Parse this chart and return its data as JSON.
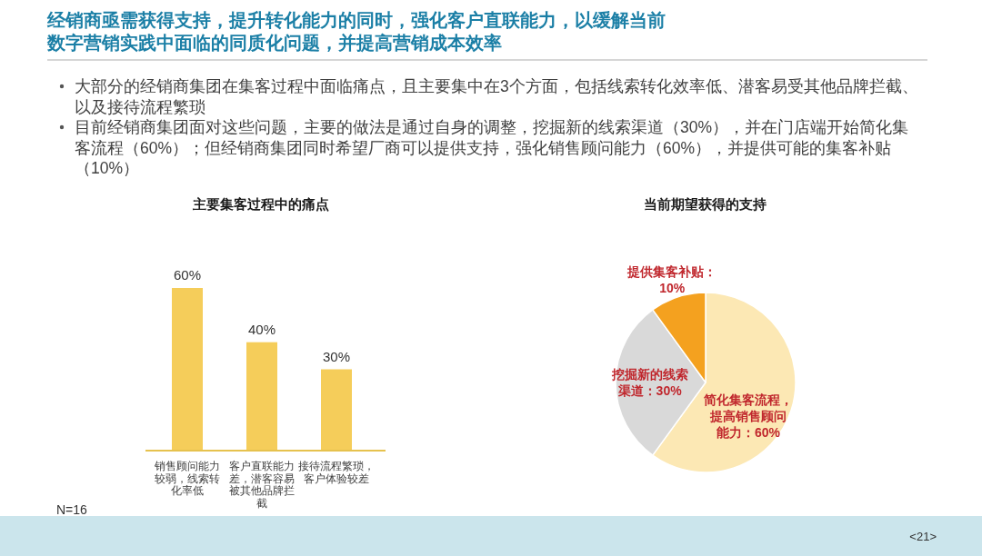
{
  "chart_data": [
    {
      "type": "other",
      "title": "经销商亟需获得支持，提升转化能力的同时，强化客户直联能力，以缓解当前数字营销实践中面临的同质化问题，并提高营销成本效率",
      "annotations": [
        "大部分的经销商集团在集客过程中面临痛点，且主要集中在3个方面，包括线索转化效率低、潜客易受其他品牌拦截、以及接待流程繁琐",
        "目前经销商集团面对这些问题，主要的做法是通过自身的调整，挖掘新的线索渠道（30%），并在门店端开始简化集客流程（60%）；但经销商集团同时希望厂商可以提供支持，强化销售顾问能力（60%），并提供可能的集客补贴（10%）",
        "<21>"
      ]
    },
    {
      "type": "bar",
      "title": "主要集客过程中的痛点",
      "categories": [
        "销售顾问能力较弱，线索转化率低",
        "客户直联能力差，潜客容易被其他品牌拦截",
        "接待流程繁琐，客户体验较差"
      ],
      "values": [
        60,
        40,
        30
      ],
      "color": "#f5cd5a",
      "value_labels": [
        "60%",
        "40%",
        "30%"
      ],
      "annotations": [
        "N=16"
      ]
    },
    {
      "type": "pie",
      "title": "当前期望获得的支持",
      "categories": [
        "简化集客流程，提高销售顾问能力：60%",
        "挖掘新的线索渠道：30%",
        "提供集客补贴：10%"
      ],
      "values": [
        60,
        30,
        10
      ],
      "colors": [
        "#fce8b4",
        "#d9d9d9",
        "#f4a11f"
      ]
    }
  ]
}
